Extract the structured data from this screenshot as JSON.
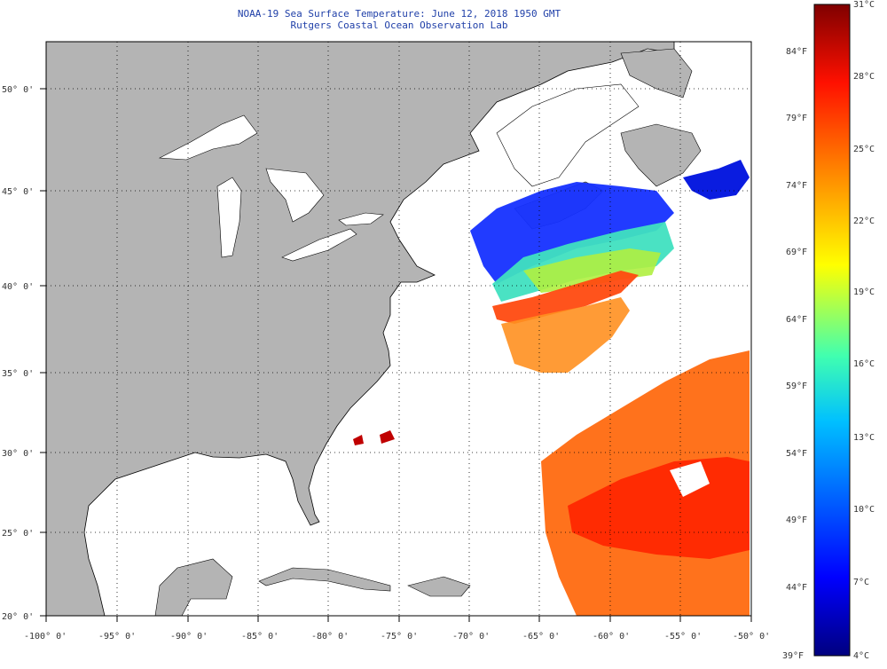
{
  "title": {
    "line1": "NOAA-19 Sea Surface Temperature:  June 12, 2018 1950 GMT",
    "line2": "Rutgers Coastal Ocean Observation Lab"
  },
  "map": {
    "lon_range": [
      -100,
      -50
    ],
    "lat_range": [
      20,
      52.5
    ],
    "lon_ticks": [
      "-100° 0'",
      "-95° 0'",
      "-90° 0'",
      "-85° 0'",
      "-80° 0'",
      "-75° 0'",
      "-70° 0'",
      "-65° 0'",
      "-60° 0'",
      "-55° 0'",
      "-50° 0'"
    ],
    "lat_ticks": [
      "20° 0'",
      "25° 0'",
      "30° 0'",
      "35° 0'",
      "40° 0'",
      "45° 0'",
      "50° 0'"
    ],
    "land_color": "#b4b4b4",
    "grid": "dotted"
  },
  "colorbar": {
    "min_c": 4,
    "max_c": 31,
    "celsius_labels": [
      "31°C",
      "28°C",
      "25°C",
      "22°C",
      "19°C",
      "16°C",
      "13°C",
      "10°C",
      "7°C",
      "4°C"
    ],
    "fahrenheit_labels": [
      "84°F",
      "79°F",
      "74°F",
      "69°F",
      "64°F",
      "59°F",
      "54°F",
      "49°F",
      "44°F",
      "39°F"
    ],
    "colors": [
      "#00007f",
      "#0000ff",
      "#007fff",
      "#00ffff",
      "#7fff7f",
      "#ffff00",
      "#ff7f00",
      "#ff0000",
      "#7f0000"
    ]
  }
}
